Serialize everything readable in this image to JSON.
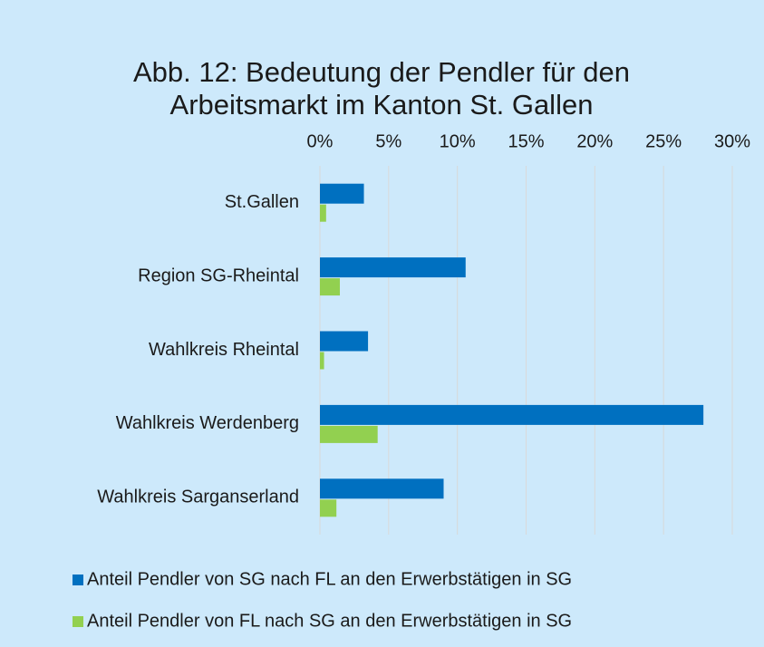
{
  "chart_data": {
    "type": "bar",
    "orientation": "horizontal",
    "title": "Abb. 12: Bedeutung der Pendler für den Arbeitsmarkt im Kanton St. Gallen",
    "categories": [
      "St.Gallen",
      "Region SG-Rheintal",
      "Wahlkreis Rheintal",
      "Wahlkreis Werdenberg",
      "Wahlkreis Sarganserland"
    ],
    "series": [
      {
        "name": "Anteil Pendler von SG nach FL an den Erwerbstätigen in SG",
        "color": "#0070c0",
        "values": [
          3.2,
          10.6,
          3.5,
          27.9,
          9.0
        ]
      },
      {
        "name": "Anteil Pendler von FL nach SG an den Erwerbstätigen in SG",
        "color": "#92d050",
        "values": [
          0.45,
          1.45,
          0.3,
          4.2,
          1.2
        ]
      }
    ],
    "xlim": [
      0,
      30
    ],
    "xticks": [
      {
        "value": 0,
        "label": "0%"
      },
      {
        "value": 5,
        "label": "5%"
      },
      {
        "value": 10,
        "label": "10%"
      },
      {
        "value": 15,
        "label": "15%"
      },
      {
        "value": 20,
        "label": "20%"
      },
      {
        "value": 25,
        "label": "25%"
      },
      {
        "value": 30,
        "label": "30%"
      }
    ],
    "grid": true,
    "legend": "bottom"
  }
}
